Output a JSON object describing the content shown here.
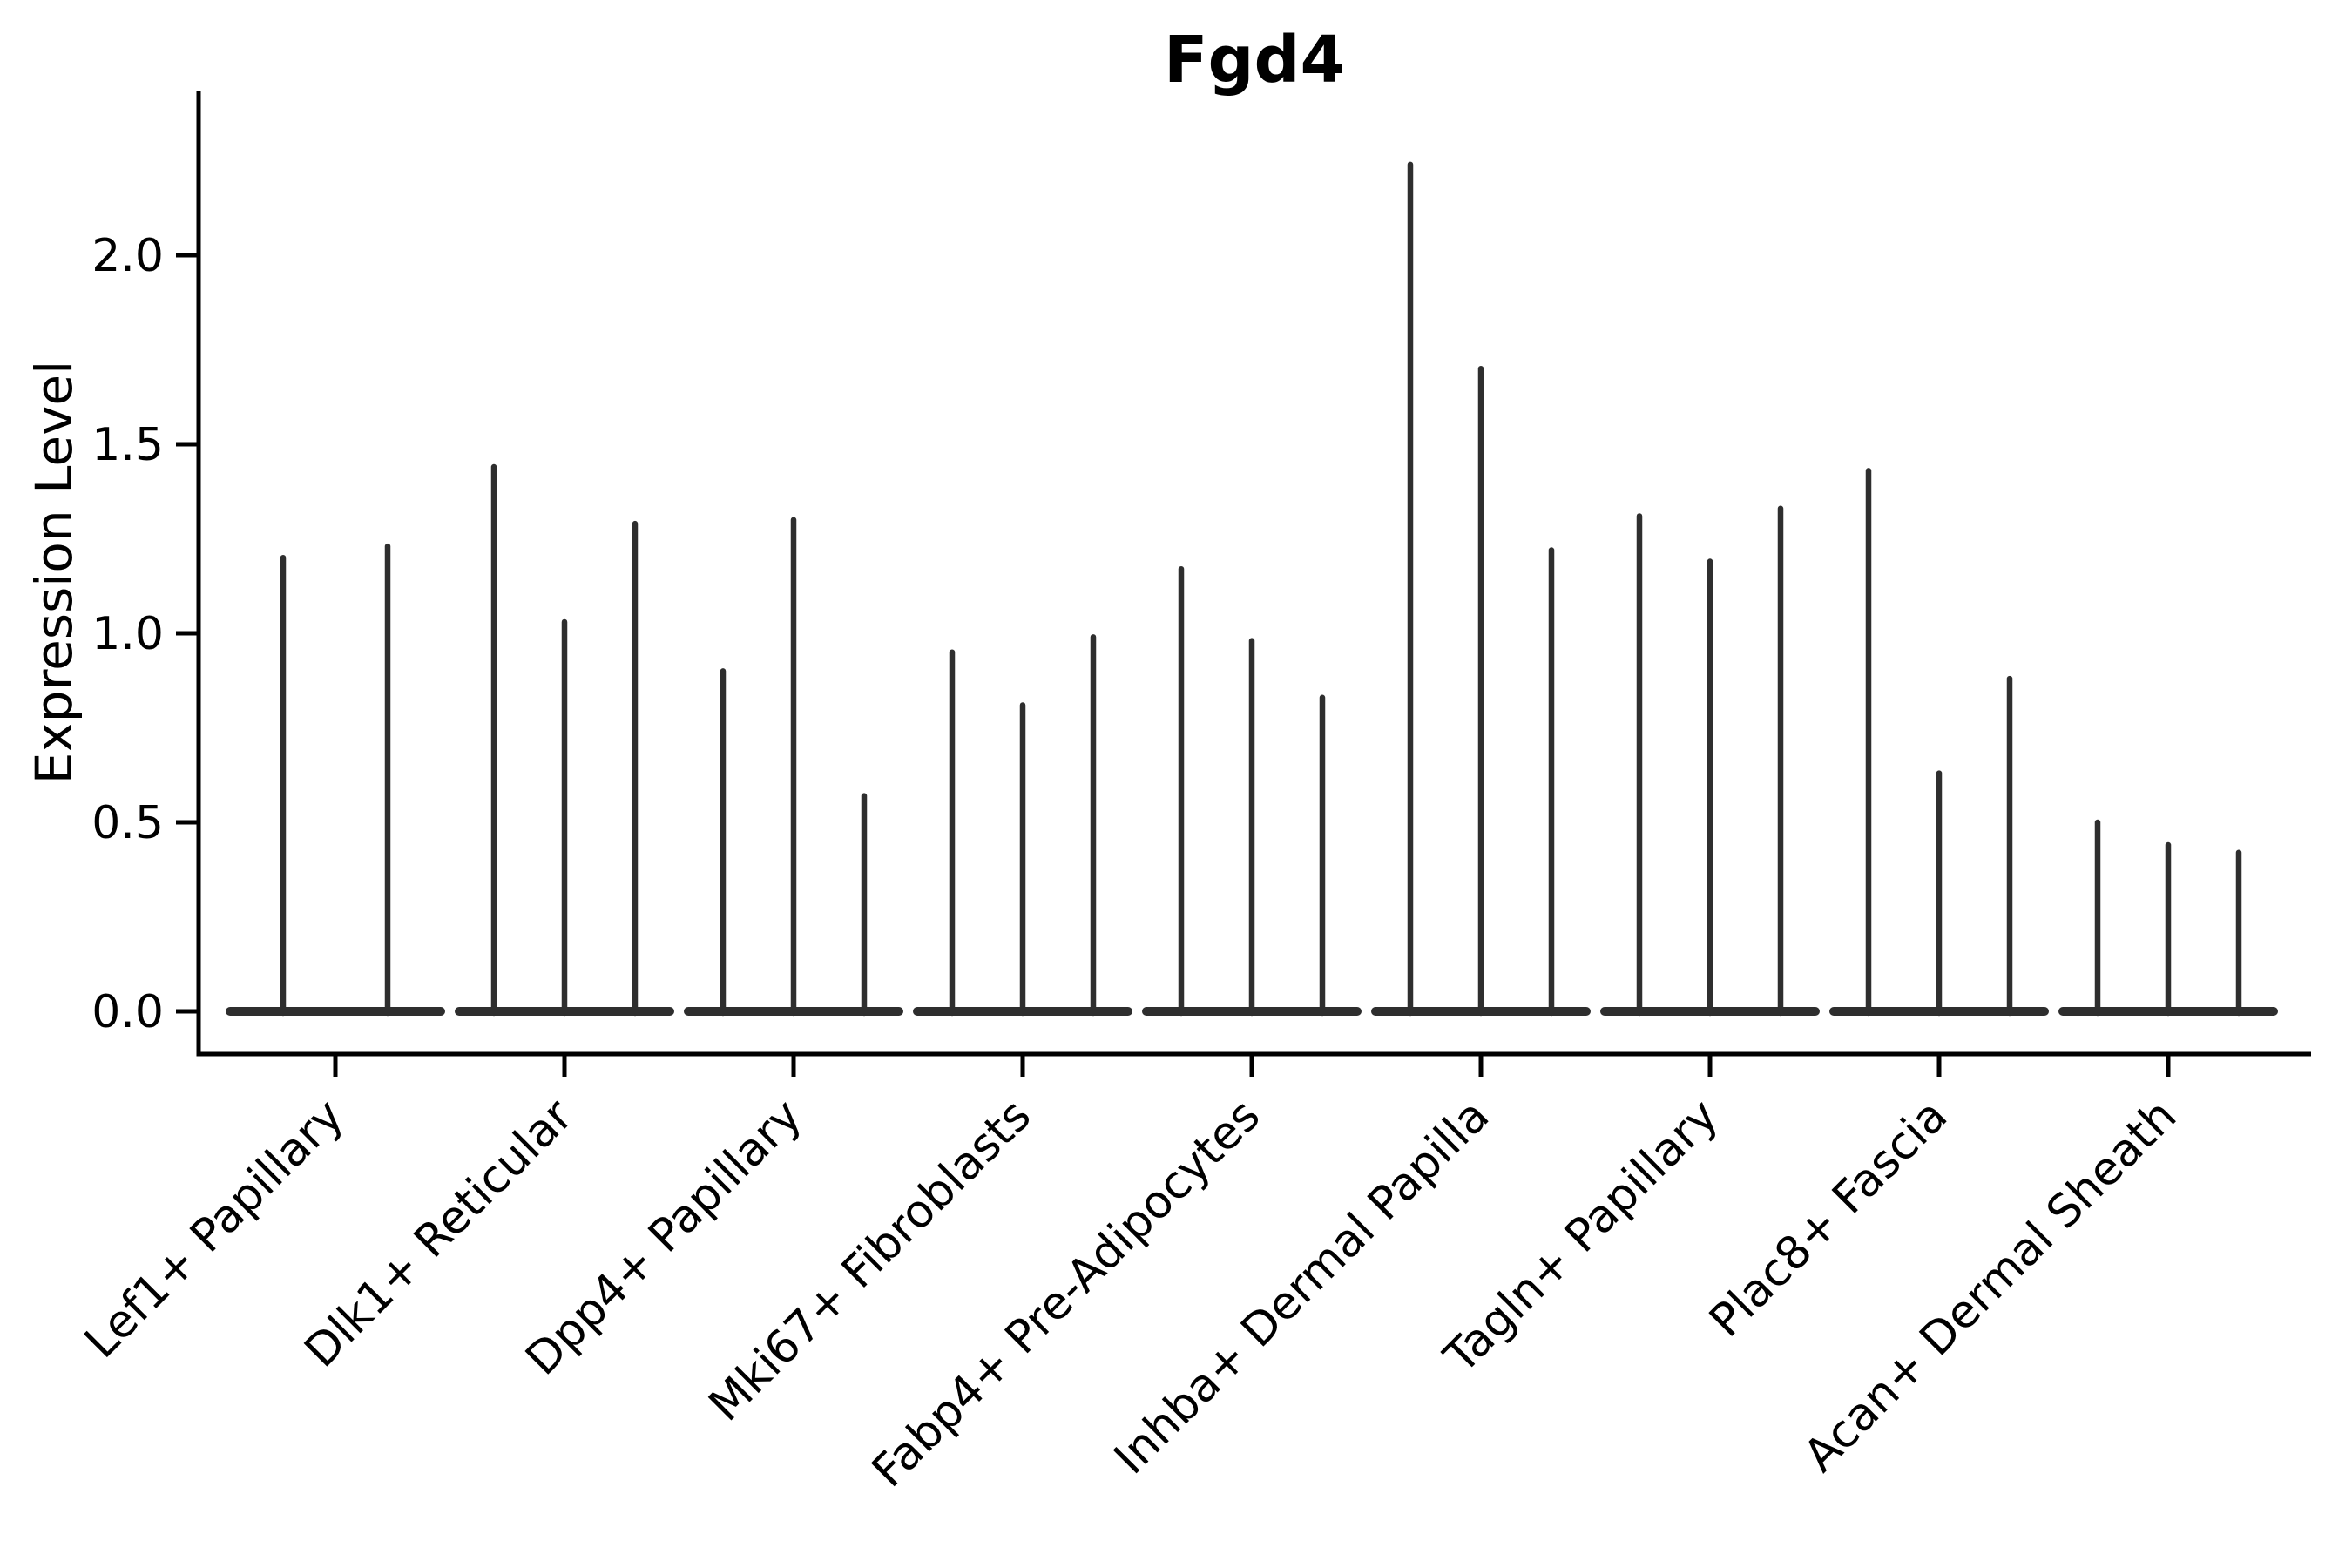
{
  "title": "Fgd4",
  "chart_data": {
    "type": "violin",
    "title": "Fgd4",
    "xlabel": "",
    "ylabel": "Expression Level",
    "ylim": [
      -0.11,
      2.43
    ],
    "yticks": [
      0.0,
      0.5,
      1.0,
      1.5,
      2.0
    ],
    "ytick_labels": [
      "0.0",
      "0.5",
      "1.0",
      "1.5",
      "2.0"
    ],
    "grid": false,
    "legend": "none",
    "violin_style": "collapsed-at-zero with thin spikes to maximum expression",
    "line_color": "#2e2e2e",
    "axis_color": "#000000",
    "categories": [
      "Lef1+ Papillary",
      "Dlk1+ Reticular",
      "Dpp4+ Papillary",
      "Mki67+ Fibroblasts",
      "Fabp4+ Pre-Adipocytes",
      "Inhba+ Dermal Papilla",
      "Tagln+ Papillary",
      "Plac8+ Fascia",
      "Acan+ Dermal Sheath"
    ],
    "groups": [
      {
        "label": "Lef1+ Papillary",
        "violin_maxima": [
          1.2,
          1.23
        ]
      },
      {
        "label": "Dlk1+ Reticular",
        "violin_maxima": [
          1.44,
          1.03,
          1.29
        ]
      },
      {
        "label": "Dpp4+ Papillary",
        "violin_maxima": [
          0.9,
          1.3,
          0.57
        ]
      },
      {
        "label": "Mki67+ Fibroblasts",
        "violin_maxima": [
          0.95,
          0.81,
          0.99
        ]
      },
      {
        "label": "Fabp4+ Pre-Adipocytes",
        "violin_maxima": [
          1.17,
          0.98,
          0.83
        ]
      },
      {
        "label": "Inhba+ Dermal Papilla",
        "violin_maxima": [
          2.24,
          1.7,
          1.22
        ]
      },
      {
        "label": "Tagln+ Papillary",
        "violin_maxima": [
          1.31,
          1.19,
          1.33
        ]
      },
      {
        "label": "Plac8+ Fascia",
        "violin_maxima": [
          1.43,
          0.63,
          0.88
        ]
      },
      {
        "label": "Acan+ Dermal Sheath",
        "violin_maxima": [
          0.5,
          0.44,
          0.42
        ]
      }
    ]
  }
}
